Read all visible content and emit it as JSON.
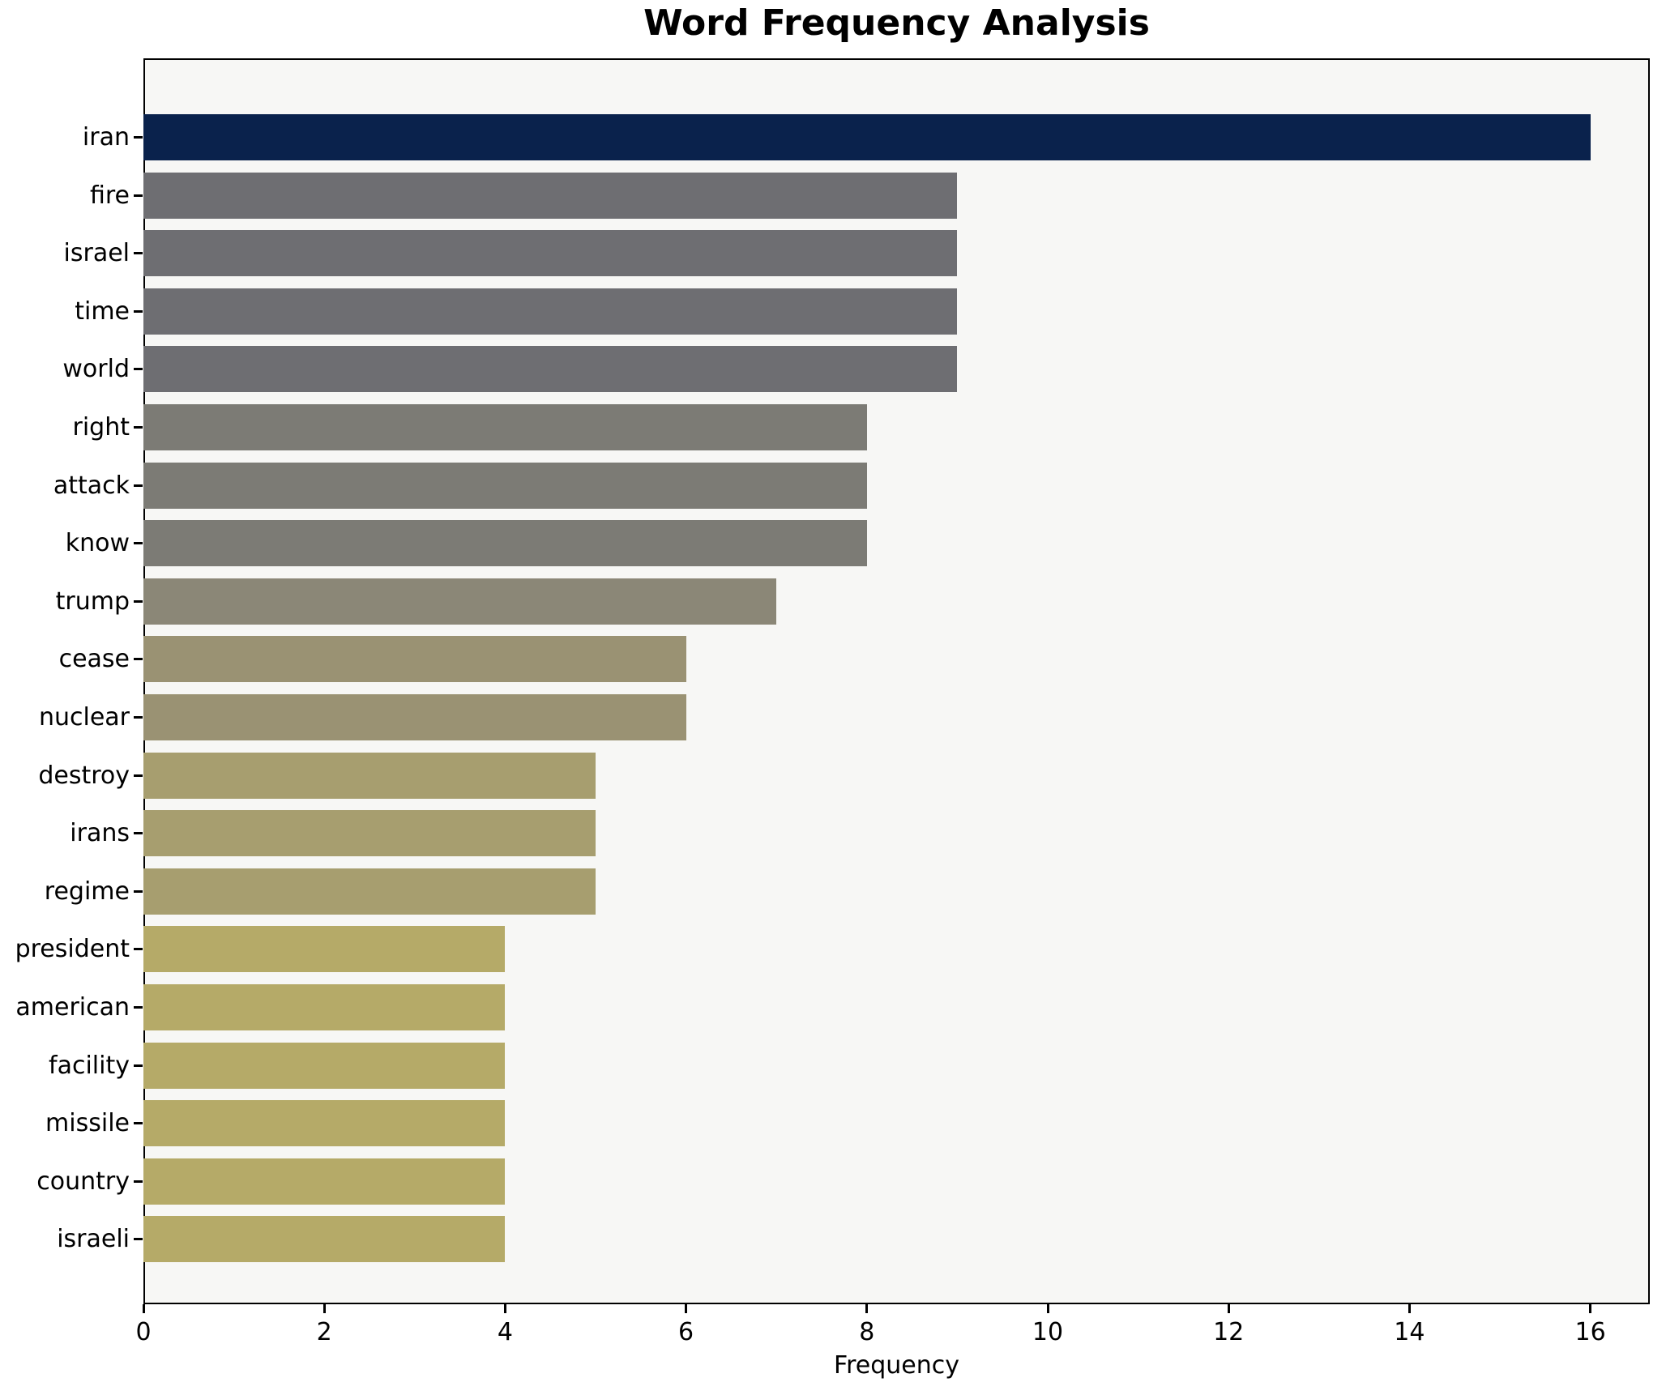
{
  "chart_data": {
    "type": "bar",
    "orientation": "horizontal",
    "title": "Word Frequency Analysis",
    "xlabel": "Frequency",
    "ylabel": "",
    "xlim": [
      0,
      16.65
    ],
    "xticks": [
      0,
      2,
      4,
      6,
      8,
      10,
      12,
      14,
      16
    ],
    "grid": false,
    "legend": "none",
    "plot_background": "#f7f7f5",
    "axis_color": "#000000",
    "categories": [
      "iran",
      "fire",
      "israel",
      "time",
      "world",
      "right",
      "attack",
      "know",
      "trump",
      "cease",
      "nuclear",
      "destroy",
      "irans",
      "regime",
      "president",
      "american",
      "facility",
      "missile",
      "country",
      "israeli"
    ],
    "values": [
      16,
      9,
      9,
      9,
      9,
      8,
      8,
      8,
      7,
      6,
      6,
      5,
      5,
      5,
      4,
      4,
      4,
      4,
      4,
      4
    ],
    "bar_colors": [
      "#0a224c",
      "#6e6e72",
      "#6e6e72",
      "#6e6e72",
      "#6e6e72",
      "#7c7b75",
      "#7c7b75",
      "#7c7b75",
      "#8b8777",
      "#9a9273",
      "#9a9273",
      "#a79e6f",
      "#a79e6f",
      "#a79e6f",
      "#b5aa68",
      "#b5aa68",
      "#b5aa68",
      "#b5aa68",
      "#b5aa68",
      "#b5aa68"
    ]
  }
}
